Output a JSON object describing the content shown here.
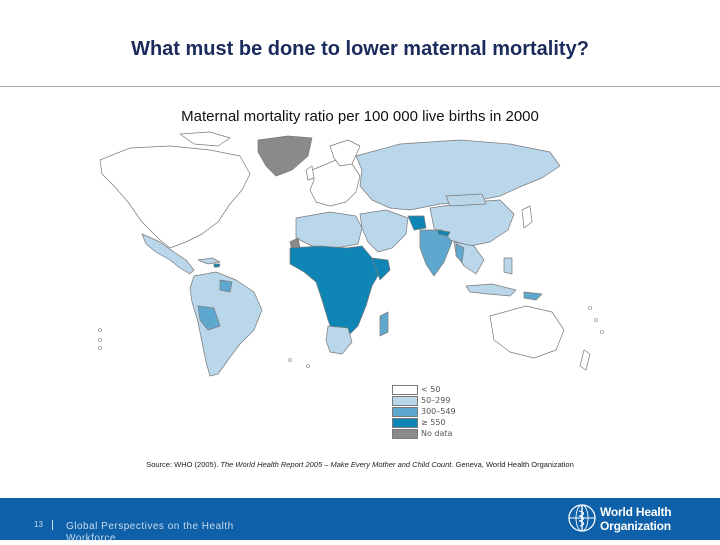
{
  "title": "What must be done to lower maternal mortality?",
  "map": {
    "title": "Maternal mortality ratio per 100 000 live births in 2000",
    "legend": [
      {
        "label": "< 50",
        "color": "#ffffff"
      },
      {
        "label": "50–299",
        "color": "#b9d6ea"
      },
      {
        "label": "300–549",
        "color": "#5ea8d0"
      },
      {
        "label": "≥ 550",
        "color": "#0f85b5"
      },
      {
        "label": "No data",
        "color": "#8a8a8a"
      }
    ],
    "colors": {
      "border": "#7a7a7a",
      "no_data": "#8a8a8a"
    }
  },
  "source": {
    "prefix": "Source: WHO (2005). ",
    "italic": "The World Health Report 2005 – Make Every Mother and Child Count.",
    "suffix": " Geneva, World Health Organization"
  },
  "footer": {
    "slide_number": "13",
    "text": "Global Perspectives on the Health Workforce",
    "org_line1": "World Health",
    "org_line2": "Organization",
    "background": "#0e60a8"
  }
}
